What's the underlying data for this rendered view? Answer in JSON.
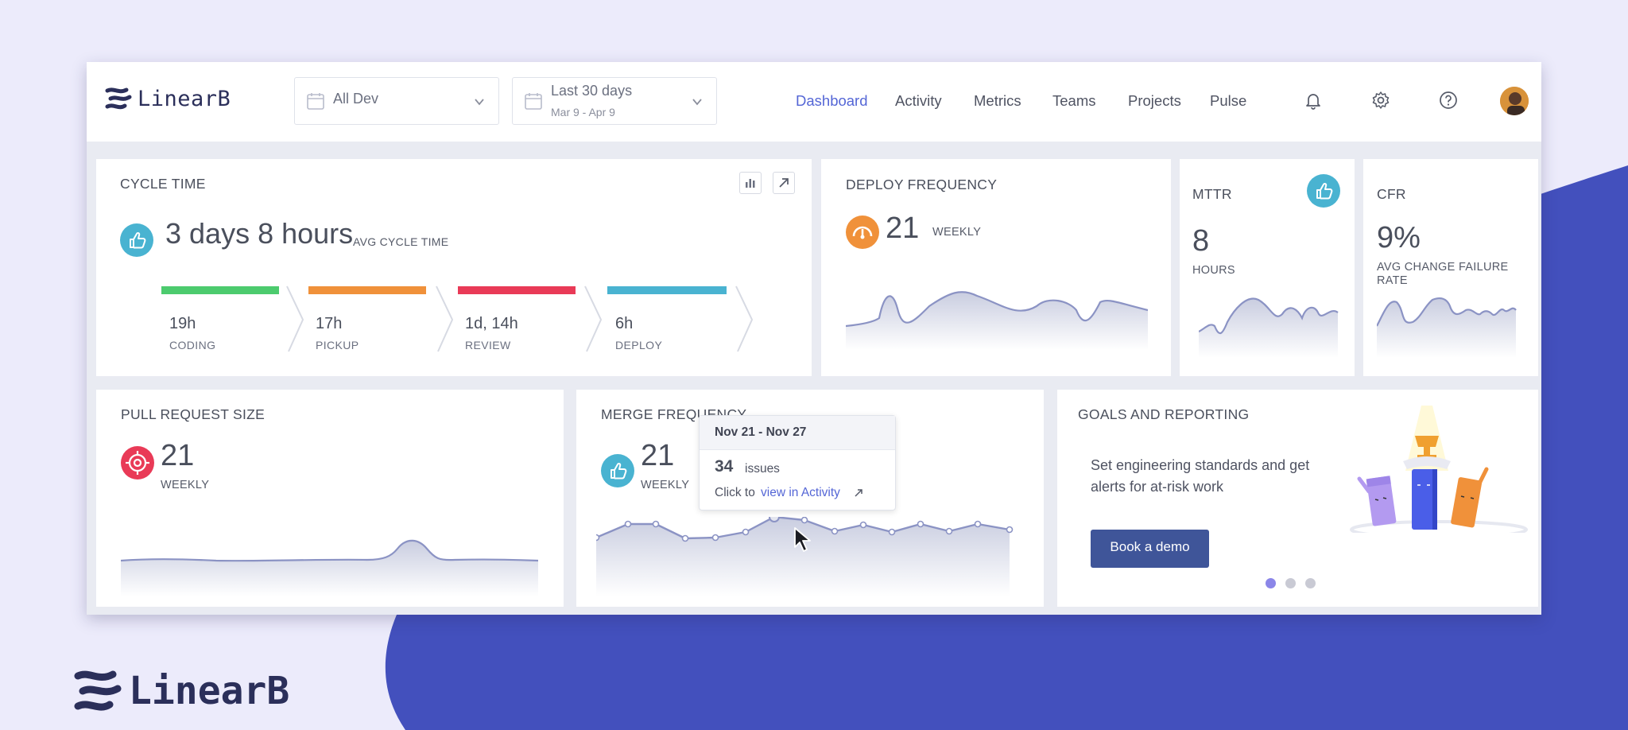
{
  "brand": {
    "name": "LinearB"
  },
  "filters": {
    "team": {
      "value": "All Dev"
    },
    "range": {
      "value": "Last 30 days",
      "sub": "Mar 9 - Apr 9"
    }
  },
  "nav": {
    "items": [
      "Dashboard",
      "Activity",
      "Metrics",
      "Teams",
      "Projects",
      "Pulse"
    ],
    "active": "Dashboard"
  },
  "header_icons": [
    "bell-icon",
    "gear-icon",
    "help-icon",
    "avatar"
  ],
  "cycle_time": {
    "title": "CYCLE TIME",
    "value": "3 days 8 hours",
    "unit": "AVG CYCLE TIME",
    "stages": [
      {
        "value": "19h",
        "label": "CODING",
        "color": "#4ccb6e"
      },
      {
        "value": "17h",
        "label": "PICKUP",
        "color": "#f0913a"
      },
      {
        "value": "1d, 14h",
        "label": "REVIEW",
        "color": "#e93a57"
      },
      {
        "value": "6h",
        "label": "DEPLOY",
        "color": "#49b3d1"
      }
    ]
  },
  "deploy_frequency": {
    "title": "DEPLOY FREQUENCY",
    "value": "21",
    "unit": "WEEKLY"
  },
  "mttr": {
    "title": "MTTR",
    "value": "8",
    "unit": "HOURS"
  },
  "cfr": {
    "title": "CFR",
    "value": "9%",
    "unit": "AVG CHANGE FAILURE RATE"
  },
  "pr_size": {
    "title": "PULL REQUEST SIZE",
    "value": "21",
    "unit": "WEEKLY"
  },
  "merge_frequency": {
    "title": "MERGE FREQUENCY",
    "value": "21",
    "unit": "WEEKLY",
    "tooltip": {
      "date": "Nov 21 - Nov 27",
      "count": "34",
      "count_label": "issues",
      "prefix": "Click to",
      "link": "view in Activity"
    }
  },
  "goals": {
    "title": "GOALS AND REPORTING",
    "text": "Set engineering standards and get alerts for at-risk work",
    "button": "Book a demo",
    "pager": {
      "count": 3,
      "active": 0
    }
  },
  "colors": {
    "accent": "#5466d6",
    "button": "#3f5599",
    "blob": "#4350bd",
    "teal": "#49b3d1"
  }
}
